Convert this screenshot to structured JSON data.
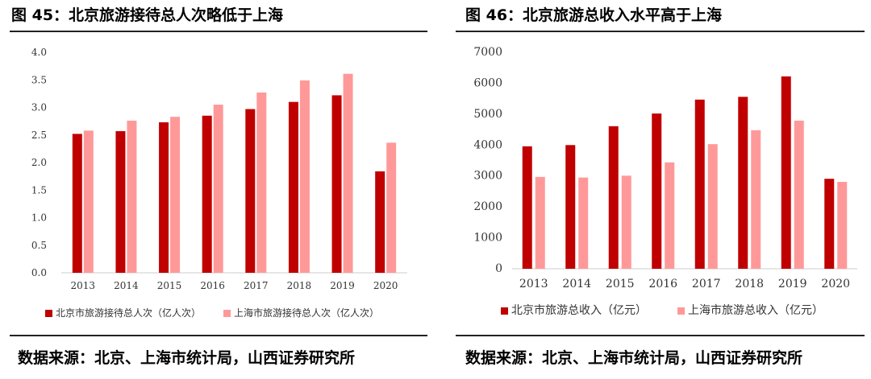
{
  "colors": {
    "beijing": "#c00000",
    "shanghai": "#ff9999",
    "axis": "#cccccc"
  },
  "left": {
    "title": "图 45：北京旅游接待总人次略低于上海",
    "source": "数据来源：北京、上海市统计局，山西证券研究所"
  },
  "right": {
    "title": "图 46：北京旅游总收入水平高于上海",
    "source": "数据来源：北京、上海市统计局，山西证券研究所"
  },
  "chart_data": [
    {
      "type": "bar",
      "categories": [
        "2013",
        "2014",
        "2015",
        "2016",
        "2017",
        "2018",
        "2019",
        "2020"
      ],
      "series": [
        {
          "name": "北京市旅游接待总人次（亿人次）",
          "values": [
            2.52,
            2.57,
            2.73,
            2.85,
            2.97,
            3.1,
            3.22,
            1.84
          ]
        },
        {
          "name": "上海市旅游接待总人次（亿人次）",
          "values": [
            2.58,
            2.76,
            2.83,
            3.05,
            3.27,
            3.49,
            3.61,
            2.36
          ]
        }
      ],
      "yticks": [
        "0.0",
        "0.5",
        "1.0",
        "1.5",
        "2.0",
        "2.5",
        "3.0",
        "3.5",
        "4.0"
      ],
      "ylim": [
        0,
        4
      ],
      "grid": false,
      "legend_position": "bottom"
    },
    {
      "type": "bar",
      "categories": [
        "2013",
        "2014",
        "2015",
        "2016",
        "2017",
        "2018",
        "2019",
        "2020"
      ],
      "series": [
        {
          "name": "北京市旅游总收入（亿元）",
          "values": [
            3960,
            4000,
            4610,
            5020,
            5470,
            5560,
            6220,
            2910
          ]
        },
        {
          "name": "上海市旅游总收入（亿元）",
          "values": [
            2970,
            2950,
            3010,
            3440,
            4030,
            4480,
            4790,
            2810
          ]
        }
      ],
      "yticks": [
        "0",
        "1000",
        "2000",
        "3000",
        "4000",
        "5000",
        "6000",
        "7000"
      ],
      "ylim": [
        0,
        7000
      ],
      "grid": false,
      "legend_position": "bottom"
    }
  ]
}
